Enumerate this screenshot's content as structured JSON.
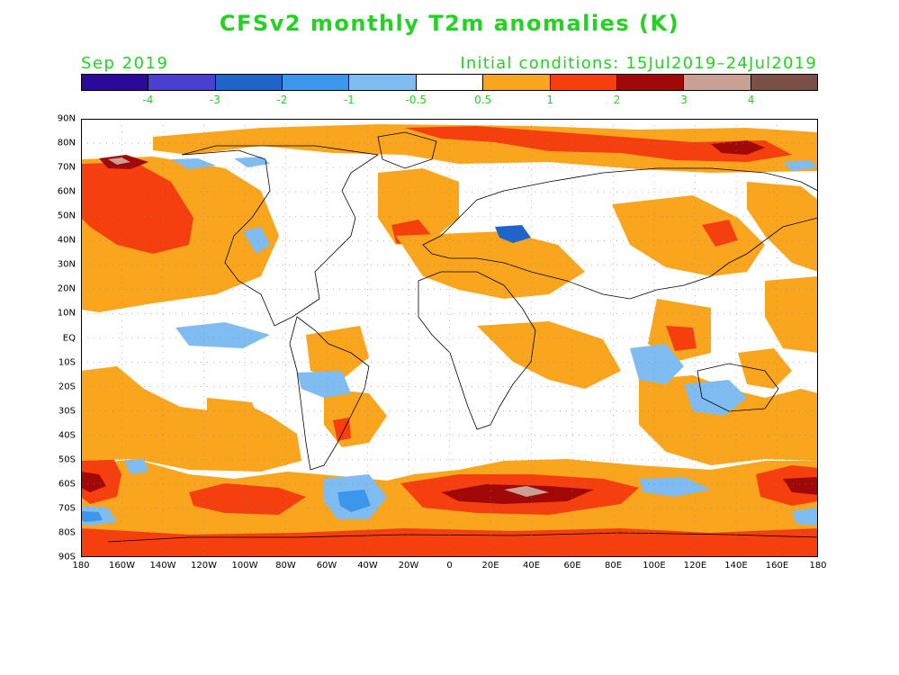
{
  "title": "CFSv2 monthly T2m anomalies (K)",
  "subtitle_left": "Sep 2019",
  "subtitle_right": "Initial conditions: 15Jul2019–24Jul2019",
  "colorbar": {
    "colors": [
      "#2a0a9a",
      "#4a3fd0",
      "#1f64c8",
      "#3c96ec",
      "#7fbcf2",
      "#ffffff",
      "#f9a51e",
      "#f53f0f",
      "#a10808",
      "#c8a094",
      "#7a5046"
    ],
    "labels": [
      "-4",
      "-3",
      "-2",
      "-1",
      "-0.5",
      "0.5",
      "1",
      "2",
      "3",
      "4"
    ]
  },
  "axes": {
    "lat_labels": [
      "90N",
      "80N",
      "70N",
      "60N",
      "50N",
      "40N",
      "30N",
      "20N",
      "10N",
      "EQ",
      "10S",
      "20S",
      "30S",
      "40S",
      "50S",
      "60S",
      "70S",
      "80S",
      "90S"
    ],
    "lon_labels": [
      "180",
      "160W",
      "140W",
      "120W",
      "100W",
      "80W",
      "60W",
      "40W",
      "20W",
      "0",
      "20E",
      "40E",
      "60E",
      "80E",
      "100E",
      "120E",
      "140E",
      "160E",
      "180"
    ]
  }
}
